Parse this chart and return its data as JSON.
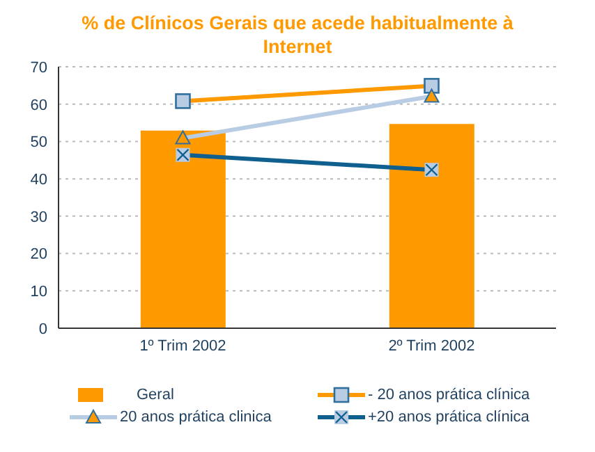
{
  "chart_data": {
    "type": "bar",
    "title": "% de Clínicos Gerais que acede habitualmente à Internet",
    "categories": [
      "1º Trim 2002",
      "2º Trim 2002"
    ],
    "ylim": [
      0,
      70
    ],
    "yticks": [
      0,
      10,
      20,
      30,
      40,
      50,
      60,
      70
    ],
    "grid": "y",
    "legend": "bottom",
    "series": [
      {
        "name": "Geral",
        "color": "#ff9900",
        "values": [
          52.9,
          54.7
        ]
      },
      {
        "name": "- 20 anos prática clínica",
        "type": "line",
        "color": "#ff9900",
        "marker": "square",
        "values": [
          60.8,
          64.9
        ]
      },
      {
        "name": "20 anos prática clinica",
        "type": "line",
        "color": "#b8cce4",
        "marker": "triangle",
        "values": [
          50.9,
          62.1
        ]
      },
      {
        "name": "+20 anos prática clínica",
        "type": "line",
        "color": "#0f5f8f",
        "marker": "cross",
        "values": [
          46.4,
          42.4
        ]
      }
    ]
  }
}
